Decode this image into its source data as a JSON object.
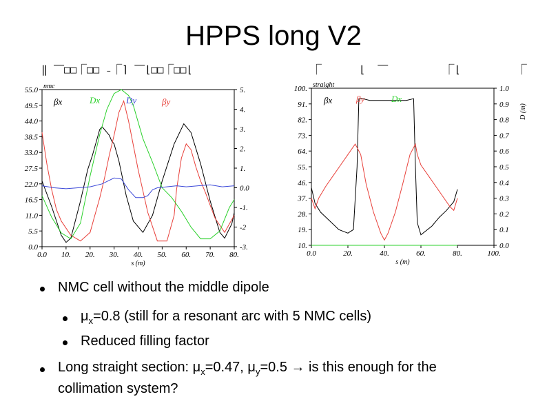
{
  "slide": {
    "title": "HPPS long V2",
    "garbled_header_left": "‖ ⎺□□⎾□□ ₋⎾⌉ ⎺⌊□□⎾□□⌊",
    "garbled_header_right": "⎾      ⌊  ⎺         ⎾⌊         ⎾"
  },
  "bullets": [
    {
      "level": 1,
      "text": "NMC cell without the middle dipole"
    },
    {
      "level": 2,
      "text": "μx=0.8 (still for a resonant arc with 5 NMC cells)"
    },
    {
      "level": 2,
      "text": "Reduced filling factor"
    },
    {
      "level": 1,
      "text": "Long straight section: μx=0.47, μy=0.5 → is this enough for the collimation system?"
    }
  ],
  "colors": {
    "beta_x": "#000000",
    "beta_y": "#e8403a",
    "dispersion": "#2bd12b",
    "dispersion_y": "#3b48d8"
  },
  "chart_data": [
    {
      "type": "line",
      "title": "",
      "corner_label": "nmc",
      "xlabel": "s (m)",
      "ylabel": "",
      "xlim": [
        0,
        80
      ],
      "ylim": [
        0,
        55
      ],
      "y2lim": [
        -3,
        5
      ],
      "xticks": [
        "0.0",
        "10.",
        "20.",
        "30.",
        "40.",
        "50.",
        "60.",
        "70.",
        "80."
      ],
      "yticks": [
        "0.0",
        "5.5",
        "11.0",
        "16.5",
        "22.0",
        "27.5",
        "33.0",
        "38.5",
        "44.0",
        "49.5",
        "55.0"
      ],
      "y2ticks": [
        "-3.",
        "-2",
        "-1.",
        "0.0",
        "1.",
        "2.",
        "3.",
        "4.",
        "5."
      ],
      "legend": [
        "βx",
        "Dx",
        "Dy",
        "βy"
      ],
      "series": [
        {
          "name": "βx",
          "axis": "left",
          "color": "#000000",
          "x": [
            0,
            4,
            8,
            10,
            12,
            16,
            19,
            21,
            22,
            23,
            24,
            25,
            26,
            27,
            28,
            29,
            30,
            31,
            32,
            33,
            35,
            38,
            42,
            46,
            50,
            55,
            59,
            62,
            66,
            70,
            74,
            76,
            79,
            80
          ],
          "y": [
            23,
            14,
            4,
            1.5,
            3,
            16,
            27,
            32,
            35,
            38,
            41,
            42,
            41,
            40,
            39,
            37,
            36,
            33,
            30,
            26,
            18,
            9,
            5,
            11,
            23,
            36,
            43,
            40,
            29,
            16,
            5,
            3,
            8,
            12
          ]
        },
        {
          "name": "βy",
          "axis": "left",
          "color": "#e8403a",
          "x": [
            0,
            2,
            4,
            6,
            8,
            12,
            16,
            20,
            22,
            24,
            26,
            28,
            30,
            32,
            34,
            36,
            40,
            44,
            48,
            52,
            55,
            56,
            58,
            60,
            62,
            64,
            66,
            68,
            72,
            76,
            80
          ],
          "y": [
            40,
            29,
            20,
            13,
            9,
            4,
            2,
            5,
            11,
            17,
            24,
            32,
            39,
            47,
            51,
            44,
            27,
            12,
            2,
            2,
            11,
            20,
            31,
            36,
            34,
            28,
            23,
            19,
            10,
            5,
            11
          ]
        },
        {
          "name": "Dx",
          "axis": "right",
          "color": "#2bd12b",
          "x": [
            0,
            4,
            8,
            12,
            16,
            20,
            24,
            27,
            30,
            33,
            36,
            38,
            42,
            46,
            50,
            54,
            58,
            62,
            66,
            70,
            74,
            78,
            80
          ],
          "y": [
            -0.4,
            -1.5,
            -2.3,
            -2.6,
            -1.8,
            0.6,
            2.7,
            4.0,
            4.8,
            5.0,
            4.7,
            4.2,
            2.5,
            1.3,
            0,
            -0.5,
            -1.2,
            -2.0,
            -2.6,
            -2.6,
            -2.2,
            -1.0,
            -0.6
          ]
        },
        {
          "name": "Dy",
          "axis": "right",
          "color": "#3b48d8",
          "x": [
            0,
            5,
            10,
            15,
            20,
            25,
            30,
            33,
            36,
            39,
            42,
            44,
            46,
            48,
            52,
            56,
            60,
            65,
            70,
            75,
            80
          ],
          "y": [
            0.1,
            0.0,
            -0.05,
            0.0,
            0.05,
            0.2,
            0.5,
            0.45,
            -0.1,
            -0.5,
            -0.5,
            -0.4,
            -0.1,
            0.0,
            0.05,
            0.1,
            0.05,
            0.1,
            0.15,
            0.05,
            0.1
          ]
        }
      ]
    },
    {
      "type": "line",
      "title": "",
      "corner_label": "straight",
      "xlabel": "s (m)",
      "ylabel": "D (m)",
      "xlim": [
        0,
        100
      ],
      "ylim": [
        10,
        100
      ],
      "y2lim": [
        0,
        1.0
      ],
      "xticks": [
        "0.0",
        "20.",
        "40.",
        "60.",
        "80.",
        "100."
      ],
      "yticks": [
        "10.",
        "19.",
        "28.",
        "37.",
        "46.",
        "55.",
        "64.",
        "73.",
        "82.",
        "91.",
        "100."
      ],
      "y2ticks": [
        "0.0",
        "0.1",
        "0.2",
        "0.3",
        "0.4",
        "0.5",
        "0.6",
        "0.7",
        "0.8",
        "0.9",
        "1.0"
      ],
      "legend": [
        "βx",
        "βy",
        "Dx"
      ],
      "series": [
        {
          "name": "βx",
          "axis": "left",
          "color": "#000000",
          "x": [
            0,
            2,
            5,
            10,
            15,
            20,
            23,
            25,
            26,
            28,
            32,
            36,
            40,
            44,
            48,
            52,
            56,
            57,
            58,
            60,
            66,
            70,
            74,
            78,
            80
          ],
          "y": [
            43,
            34,
            29,
            24,
            19,
            17,
            19,
            55,
            94,
            94,
            93,
            93,
            93,
            93,
            93,
            93,
            94,
            55,
            23,
            16,
            21,
            26,
            30,
            35,
            42
          ]
        },
        {
          "name": "βy",
          "axis": "left",
          "color": "#e8403a",
          "x": [
            0,
            2,
            4,
            8,
            12,
            16,
            20,
            24,
            25,
            27,
            30,
            34,
            38,
            40,
            42,
            46,
            50,
            54,
            56,
            57,
            58,
            60,
            64,
            68,
            72,
            76,
            78,
            80
          ],
          "y": [
            37,
            31,
            37,
            44,
            50,
            56,
            62,
            68,
            66,
            62,
            45,
            29,
            17,
            13,
            17,
            29,
            45,
            62,
            66,
            68,
            62,
            56,
            50,
            44,
            38,
            32,
            30,
            37
          ]
        },
        {
          "name": "Dx",
          "axis": "right",
          "color": "#2bd12b",
          "x": [
            0,
            20,
            40,
            60,
            80
          ],
          "y": [
            0,
            0,
            0,
            0,
            0
          ]
        }
      ]
    }
  ]
}
